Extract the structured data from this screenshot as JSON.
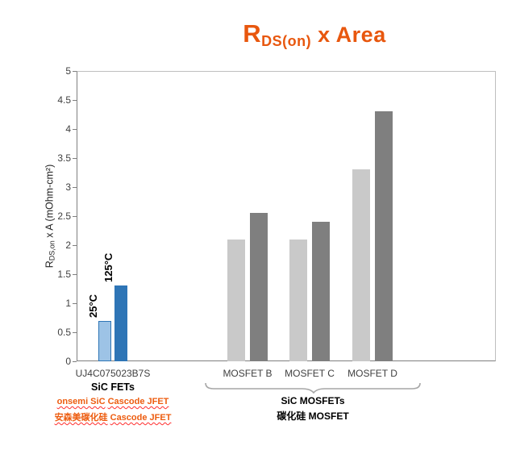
{
  "title": {
    "r": "R",
    "sub": "DS(on)",
    "rest": " x Area"
  },
  "y_axis": {
    "label_r": "R",
    "label_sub": "DS,on",
    "label_rest": " x A (mOhm-cm²)",
    "ticks": [
      "0",
      "0.5",
      "1",
      "1.5",
      "2",
      "2.5",
      "3",
      "3.5",
      "4",
      "4.5",
      "5"
    ]
  },
  "chart_data": {
    "type": "bar",
    "title": "RDS(on) x Area",
    "xlabel": "",
    "ylabel": "RDS,on x A (mOhm-cm²)",
    "ylim": [
      0,
      5
    ],
    "ytick_step": 0.5,
    "grid": false,
    "legend_position": "none",
    "categories": [
      "UJ4C075023B7S",
      "MOSFET B",
      "MOSFET C",
      "MOSFET D"
    ],
    "series": [
      {
        "name": "25°C",
        "values": [
          0.7,
          2.1,
          2.1,
          3.3
        ]
      },
      {
        "name": "125°C",
        "values": [
          1.3,
          2.55,
          2.4,
          4.3
        ]
      }
    ],
    "bar_annotations": [
      "25°C",
      "125°C"
    ],
    "colors": {
      "title_accent": "#E8570E",
      "sic_light": "#9DC3E6",
      "sic_dark": "#2E75B6",
      "sic_border": "#2E75B6",
      "mosfet_light": "#C9C9C9",
      "mosfet_dark": "#7F7F7F",
      "squiggle": "#FF2D2D"
    }
  },
  "x_axis": {
    "group1_label": "UJ4C075023B7S",
    "group1_sub": "SiC FETs"
  },
  "footnotes": {
    "en": [
      "onsemi SiC",
      "Cascode JFET"
    ],
    "cn": [
      "安森美碳化硅",
      "Cascode JFET"
    ]
  },
  "brace": {
    "line1": "SiC MOSFETs",
    "line2": "碳化硅 MOSFET"
  }
}
